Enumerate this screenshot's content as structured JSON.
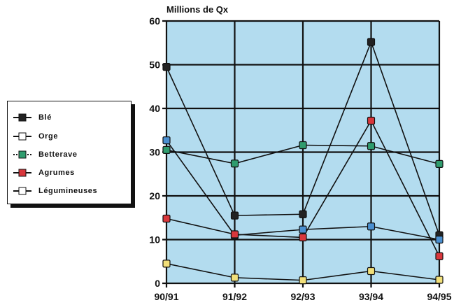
{
  "chart_data": {
    "type": "line",
    "title": "",
    "ylabel": "Millions de Qx",
    "xlabel": "",
    "categories": [
      "90/91",
      "91/92",
      "92/93",
      "93/94",
      "94/95"
    ],
    "ylim": [
      0,
      60
    ],
    "yticks": [
      0,
      10,
      20,
      30,
      40,
      50,
      60
    ],
    "grid": true,
    "legend_position": "left",
    "colors": {
      "plot_background": "#b3dcef",
      "grid": "#111111"
    },
    "series": [
      {
        "name": "Blé",
        "marker_color": "#222222",
        "values": [
          49.5,
          15.5,
          15.8,
          55.2,
          11.0
        ]
      },
      {
        "name": "Orge",
        "marker_color": "#4a8fd0",
        "values": [
          32.7,
          11.0,
          12.3,
          13.0,
          10.0
        ]
      },
      {
        "name": "Betterave",
        "marker_color": "#2f9c6e",
        "values": [
          30.5,
          27.4,
          31.6,
          31.4,
          27.3
        ]
      },
      {
        "name": "Agrumes",
        "marker_color": "#d9373c",
        "values": [
          14.8,
          11.2,
          10.5,
          37.2,
          6.2
        ]
      },
      {
        "name": "Légumineuses",
        "marker_color": "#f2e07a",
        "values": [
          4.5,
          1.3,
          0.7,
          2.8,
          0.8
        ]
      }
    ]
  }
}
